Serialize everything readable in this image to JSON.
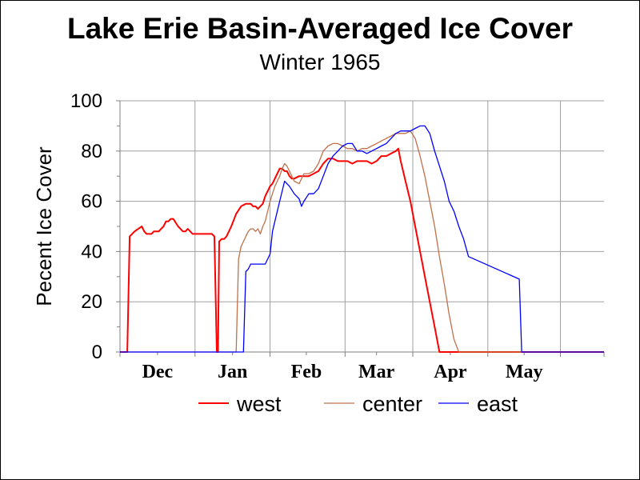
{
  "chart_data": {
    "type": "line",
    "title": "Lake Erie Basin-Averaged Ice Cover",
    "subtitle": "Winter 1965",
    "ylabel": "Pecent Ice Cover",
    "xlabel": "",
    "ylim": [
      0,
      100
    ],
    "yticks": [
      "0",
      "20",
      "40",
      "60",
      "80",
      "100"
    ],
    "xlim": [
      0,
      200
    ],
    "month_boundaries": [
      0,
      31,
      62,
      93,
      121,
      152,
      182,
      200
    ],
    "months": [
      {
        "label": "Dec",
        "at": 15.5
      },
      {
        "label": "Jan",
        "at": 46.5
      },
      {
        "label": "Feb",
        "at": 77
      },
      {
        "label": "Mar",
        "at": 106
      },
      {
        "label": "Apr",
        "at": 136.5
      },
      {
        "label": "May",
        "at": 167
      }
    ],
    "grid": true,
    "legend_position": "bottom",
    "series": [
      {
        "name": "west",
        "color": "#ff0000",
        "x": [
          0,
          3,
          4,
          6,
          9,
          10,
          11,
          12,
          13,
          14,
          16,
          17,
          18,
          19,
          20,
          21,
          22,
          24,
          25,
          26,
          27,
          28,
          30,
          32,
          34,
          36,
          38,
          39,
          40,
          40.5,
          41,
          42,
          43,
          44,
          45,
          46,
          48,
          50,
          52,
          53,
          54,
          55,
          56,
          57,
          58,
          59,
          60,
          62,
          63,
          64,
          66,
          67,
          68,
          69,
          70,
          71,
          72,
          74,
          76,
          78,
          80,
          82,
          84,
          86,
          88,
          90,
          92,
          94,
          96,
          98,
          100,
          102,
          104,
          106,
          108,
          110,
          112,
          114,
          115,
          116,
          118,
          120,
          122,
          124,
          126,
          128,
          130,
          132,
          134,
          136,
          150,
          200
        ],
        "y": [
          0,
          0,
          46,
          48,
          50,
          48,
          47,
          47,
          47,
          48,
          48,
          49,
          50,
          52,
          52,
          53,
          53,
          50,
          49,
          48,
          48,
          49,
          47,
          47,
          47,
          47,
          47,
          46,
          0,
          0,
          44,
          45,
          45,
          46,
          48,
          50,
          55,
          58,
          59,
          59,
          59,
          58,
          58,
          57,
          58,
          59,
          62,
          66,
          67,
          69,
          73,
          73,
          72,
          72,
          70,
          69,
          69,
          70,
          70,
          70,
          71,
          72,
          75,
          77,
          77,
          76,
          76,
          76,
          75,
          76,
          76,
          76,
          75,
          76,
          78,
          78,
          79,
          80,
          81,
          76,
          68,
          60,
          50,
          40,
          30,
          20,
          10,
          0,
          0,
          0,
          0,
          0
        ]
      },
      {
        "name": "center",
        "color": "#c0704a",
        "x": [
          0,
          48,
          49,
          50,
          52,
          53,
          54,
          55,
          56,
          57,
          58,
          59,
          60,
          62,
          64,
          66,
          67,
          68,
          69,
          70,
          71,
          72,
          74,
          76,
          78,
          80,
          82,
          84,
          86,
          88,
          90,
          92,
          94,
          96,
          98,
          100,
          102,
          104,
          106,
          108,
          110,
          112,
          114,
          116,
          118,
          120,
          122,
          124,
          126,
          128,
          130,
          132,
          134,
          136,
          138,
          140,
          142,
          144,
          146,
          150,
          200
        ],
        "y": [
          0,
          0,
          37,
          42,
          46,
          48,
          49,
          49,
          48,
          49,
          47,
          50,
          52,
          60,
          66,
          70,
          73,
          75,
          74,
          72,
          70,
          68,
          67,
          71,
          71,
          72,
          75,
          80,
          82,
          83,
          83,
          82,
          81,
          81,
          80,
          81,
          81,
          82,
          83,
          84,
          85,
          86,
          87,
          87,
          87,
          88,
          85,
          78,
          70,
          60,
          50,
          38,
          27,
          15,
          5,
          0,
          0,
          0,
          0,
          0,
          0
        ]
      },
      {
        "name": "east",
        "color": "#0000ff",
        "x": [
          0,
          51,
          52,
          53,
          54,
          56,
          58,
          60,
          62,
          63,
          64,
          66,
          67,
          68,
          70,
          72,
          74,
          75,
          76,
          78,
          80,
          82,
          84,
          86,
          88,
          90,
          92,
          94,
          96,
          98,
          100,
          102,
          104,
          106,
          108,
          110,
          112,
          114,
          116,
          118,
          120,
          122,
          124,
          126,
          128,
          130,
          132,
          134,
          136,
          138,
          140,
          142,
          144,
          165,
          166,
          170,
          200
        ],
        "y": [
          0,
          0,
          32,
          33,
          35,
          35,
          35,
          35,
          39,
          48,
          52,
          60,
          64,
          68,
          66,
          63,
          61,
          58,
          60,
          63,
          63,
          65,
          70,
          75,
          78,
          80,
          82,
          83,
          83,
          80,
          80,
          79,
          80,
          81,
          82,
          83,
          85,
          87,
          88,
          88,
          88,
          89,
          90,
          90,
          87,
          80,
          74,
          68,
          60,
          56,
          50,
          45,
          38,
          29,
          0,
          0,
          0
        ]
      }
    ]
  }
}
